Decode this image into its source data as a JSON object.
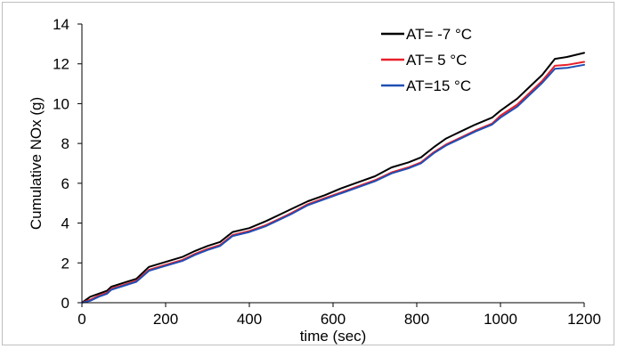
{
  "chart_data": {
    "type": "line",
    "title": "",
    "xlabel": "time (sec)",
    "ylabel": "Cumulative NOx (g)",
    "xlim": [
      0,
      1200
    ],
    "ylim": [
      0,
      14
    ],
    "xticks": [
      "0",
      "200",
      "400",
      "600",
      "800",
      "1000",
      "1200"
    ],
    "yticks": [
      "0",
      "2",
      "4",
      "6",
      "8",
      "10",
      "12",
      "14"
    ],
    "grid": false,
    "legend_position": "top-right",
    "x": [
      0,
      20,
      40,
      60,
      70,
      100,
      130,
      160,
      200,
      240,
      270,
      300,
      330,
      360,
      400,
      440,
      470,
      500,
      540,
      580,
      620,
      660,
      700,
      740,
      780,
      810,
      840,
      870,
      900,
      940,
      980,
      1000,
      1040,
      1070,
      1100,
      1130,
      1160,
      1200
    ],
    "series": [
      {
        "name": "AT= -7 °C",
        "color": "#000000",
        "values": [
          0,
          0.3,
          0.45,
          0.6,
          0.8,
          1.0,
          1.2,
          1.8,
          2.05,
          2.3,
          2.6,
          2.85,
          3.05,
          3.55,
          3.75,
          4.1,
          4.4,
          4.7,
          5.1,
          5.4,
          5.75,
          6.05,
          6.35,
          6.8,
          7.05,
          7.3,
          7.8,
          8.25,
          8.55,
          8.95,
          9.3,
          9.65,
          10.25,
          10.85,
          11.45,
          12.25,
          12.35,
          12.55
        ]
      },
      {
        "name": "AT= 5 °C",
        "color": "#e8202a",
        "values": [
          0,
          0.15,
          0.35,
          0.5,
          0.7,
          0.9,
          1.1,
          1.65,
          1.9,
          2.15,
          2.45,
          2.7,
          2.9,
          3.4,
          3.6,
          3.9,
          4.2,
          4.5,
          4.95,
          5.25,
          5.55,
          5.85,
          6.15,
          6.55,
          6.8,
          7.05,
          7.55,
          7.95,
          8.25,
          8.65,
          9.0,
          9.4,
          9.95,
          10.55,
          11.15,
          11.9,
          11.95,
          12.1
        ]
      },
      {
        "name": "AT=15 °C",
        "color": "#1f4fb4",
        "values": [
          0,
          0.1,
          0.3,
          0.45,
          0.65,
          0.85,
          1.05,
          1.6,
          1.85,
          2.1,
          2.4,
          2.65,
          2.85,
          3.35,
          3.55,
          3.85,
          4.15,
          4.45,
          4.9,
          5.2,
          5.5,
          5.8,
          6.1,
          6.5,
          6.75,
          7.0,
          7.5,
          7.9,
          8.2,
          8.6,
          8.95,
          9.3,
          9.85,
          10.45,
          11.05,
          11.75,
          11.8,
          11.95
        ]
      }
    ]
  }
}
